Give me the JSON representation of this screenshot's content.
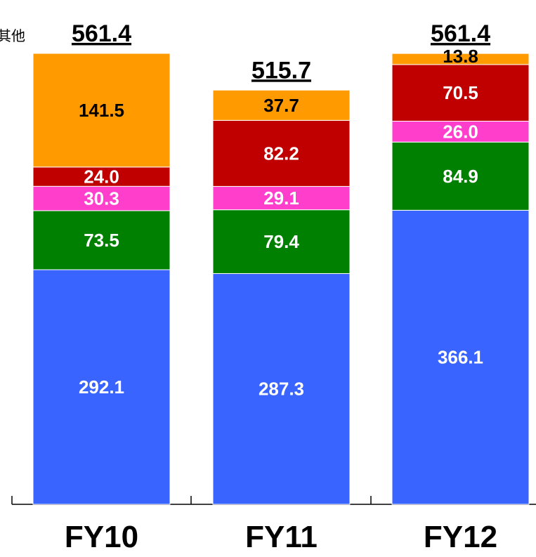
{
  "chart_data": {
    "type": "bar",
    "stacked": true,
    "categories": [
      "FY10",
      "FY11",
      "FY12"
    ],
    "totals": [
      "561.4",
      "515.7",
      "561.4"
    ],
    "legend_note": "其他",
    "series": [
      {
        "color": "#3a64ff",
        "values": [
          292.1,
          287.3,
          366.1
        ]
      },
      {
        "color": "#008000",
        "values": [
          73.5,
          79.4,
          84.9
        ]
      },
      {
        "color": "#ff3fcc",
        "values": [
          30.3,
          29.1,
          26.0
        ]
      },
      {
        "color": "#c00000",
        "values": [
          24.0,
          82.2,
          70.5
        ]
      },
      {
        "name": "其他",
        "color": "#ff9a00",
        "values": [
          141.5,
          37.7,
          13.8
        ]
      }
    ]
  }
}
